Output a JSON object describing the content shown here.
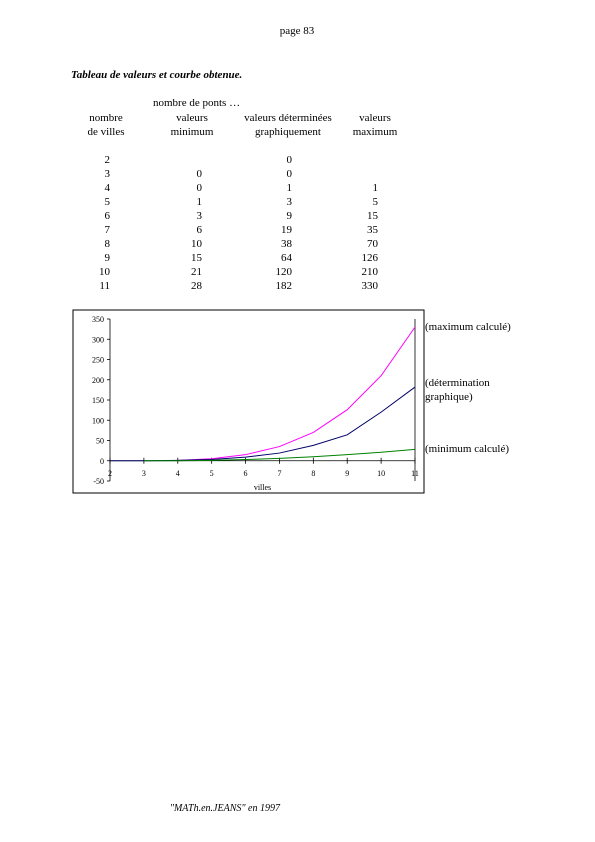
{
  "header": {
    "page": "page 83"
  },
  "heading": "Tableau de valeurs et courbe obtenue.",
  "table": {
    "group_header": "nombre de ponts …",
    "columns": [
      [
        "nombre",
        "de villes"
      ],
      [
        "valeurs",
        "minimum"
      ],
      [
        "valeurs déterminées",
        "graphiquement"
      ],
      [
        "valeurs",
        "maximum"
      ]
    ],
    "rows": [
      [
        2,
        null,
        0,
        null
      ],
      [
        3,
        0,
        0,
        null
      ],
      [
        4,
        0,
        1,
        1
      ],
      [
        5,
        1,
        3,
        5
      ],
      [
        6,
        3,
        9,
        15
      ],
      [
        7,
        6,
        19,
        35
      ],
      [
        8,
        10,
        38,
        70
      ],
      [
        9,
        15,
        64,
        126
      ],
      [
        10,
        21,
        120,
        210
      ],
      [
        11,
        28,
        182,
        330
      ]
    ]
  },
  "chart_data": {
    "type": "line",
    "x": [
      2,
      3,
      4,
      5,
      6,
      7,
      8,
      9,
      10,
      11
    ],
    "xlabel": "villes",
    "xlim": [
      2,
      11
    ],
    "xticks": [
      2,
      3,
      4,
      5,
      6,
      7,
      8,
      9,
      10,
      11
    ],
    "ylim": [
      -50,
      350
    ],
    "yticks": [
      -50,
      0,
      50,
      100,
      150,
      200,
      250,
      300,
      350
    ],
    "series": [
      {
        "name": "(maximum calculé)",
        "color": "#ff00ff",
        "values": [
          null,
          null,
          1,
          5,
          15,
          35,
          70,
          126,
          210,
          330
        ]
      },
      {
        "name": "(détermination graphique)",
        "color": "#000066",
        "values": [
          0,
          0,
          1,
          3,
          9,
          19,
          38,
          64,
          120,
          182
        ]
      },
      {
        "name": "(minimum calculé)",
        "color": "#008000",
        "values": [
          null,
          0,
          0,
          1,
          3,
          6,
          10,
          15,
          21,
          28
        ]
      }
    ]
  },
  "footer": "\"MATh.en.JEANS\" en 1997"
}
